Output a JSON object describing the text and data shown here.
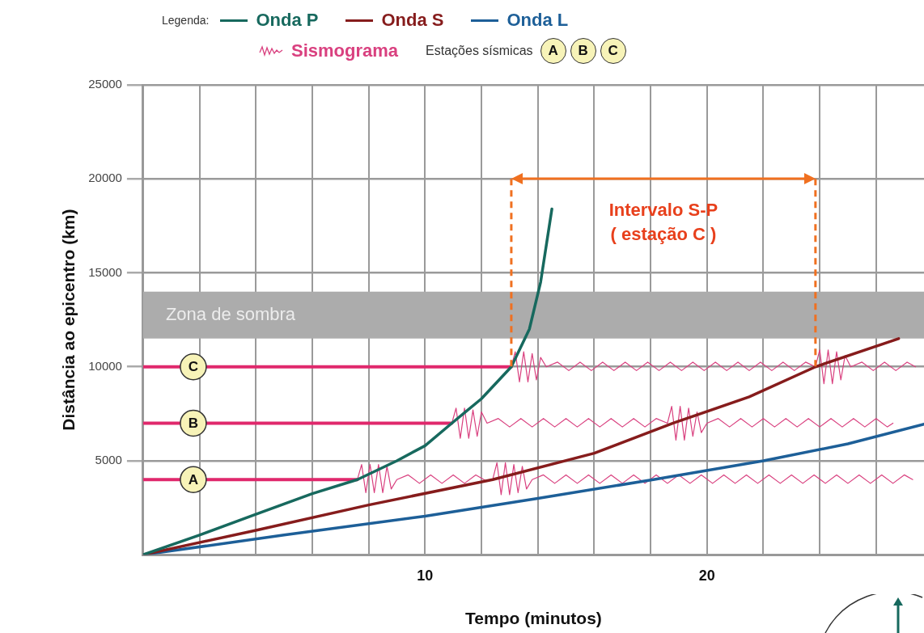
{
  "chart_data": {
    "type": "line",
    "xlabel": "Tempo (minutos)",
    "ylabel": "Distância ao epicentro (km)",
    "legend_title": "Legenda:",
    "legend": "top",
    "grid": true,
    "xlim": [
      0,
      27.7
    ],
    "ylim": [
      0,
      25000
    ],
    "xticks": [
      {
        "value": 2,
        "label": null
      },
      {
        "value": 4,
        "label": null
      },
      {
        "value": 6,
        "label": null
      },
      {
        "value": 8,
        "label": null
      },
      10,
      {
        "value": 12,
        "label": null
      },
      {
        "value": 14,
        "label": null
      },
      {
        "value": 16,
        "label": null
      },
      {
        "value": 18,
        "label": null
      },
      20,
      {
        "value": 22,
        "label": null
      },
      {
        "value": 24,
        "label": null
      },
      {
        "value": 26,
        "label": null
      }
    ],
    "yticks": [
      5000,
      10000,
      15000,
      20000,
      25000
    ],
    "bands": [
      {
        "axis": "y",
        "from": 11500,
        "to": 14000,
        "label": "Zona de sombra",
        "color": "#acacac"
      }
    ],
    "ref_lines": [
      {
        "axis": "x",
        "value": 13.06,
        "color": "#f07020",
        "line_style": "dashed"
      },
      {
        "axis": "x",
        "value": 23.85,
        "color": "#f07020",
        "line_style": "dashed"
      }
    ],
    "annotations": [
      "Intervalo S-P",
      "( estação C )",
      "Estações sísmicas"
    ],
    "series": [
      {
        "name": "Onda P",
        "color": "#17695e",
        "x": [
          0,
          2,
          4,
          6,
          7.6,
          9,
          10,
          10.95,
          12,
          13.06,
          13.7,
          14.1,
          14.5
        ],
        "values": [
          0,
          1050,
          2150,
          3250,
          4000,
          5000,
          5800,
          7000,
          8300,
          10000,
          12000,
          14500,
          18400
        ]
      },
      {
        "name": "Onda S",
        "color": "#861c1c",
        "x": [
          0,
          4,
          8,
          12.4,
          16,
          18.8,
          21.5,
          23.85,
          26.8
        ],
        "values": [
          0,
          1300,
          2650,
          4000,
          5400,
          7000,
          8400,
          10000,
          11500
        ]
      },
      {
        "name": "Onda L",
        "color": "#1d5f98",
        "x": [
          0,
          5,
          10,
          14,
          18.1,
          22,
          25,
          27.7
        ],
        "values": [
          0,
          1050,
          2050,
          3000,
          4000,
          5000,
          5900,
          6950
        ]
      },
      {
        "name": "Sismograma",
        "color": "#d9407f",
        "x": [
          7.6,
          7.75,
          7.9,
          8.05,
          8.2,
          8.35,
          8.5,
          8.65,
          8.8,
          9.0,
          9.4,
          9.8,
          10.2,
          10.6,
          11.0,
          11.4,
          11.8,
          12.2,
          12.4,
          12.55,
          12.7,
          12.85,
          13.0,
          13.15,
          13.3,
          13.45,
          13.6,
          13.8,
          14.2,
          14.6,
          15.0,
          15.4,
          15.8,
          16.2,
          16.6,
          17.0,
          17.4,
          17.8,
          18.2,
          18.6,
          19.0,
          19.4,
          19.8,
          20.2,
          20.6,
          21.0,
          21.4,
          21.8,
          22.2,
          22.6,
          23.0,
          23.4,
          23.8,
          24.2,
          24.6,
          25.0,
          25.4,
          25.8,
          26.2,
          26.6,
          27.0,
          27.3
        ],
        "values": [
          4000,
          4800,
          3300,
          4800,
          3300,
          4800,
          3300,
          4700,
          3500,
          4000,
          4250,
          3800,
          4250,
          3800,
          4250,
          3800,
          4250,
          3900,
          4000,
          4900,
          3200,
          4900,
          3200,
          4800,
          3300,
          4700,
          3500,
          4000,
          4250,
          3800,
          4250,
          3800,
          4250,
          3800,
          4250,
          3800,
          4250,
          3800,
          4250,
          3800,
          4250,
          3800,
          4250,
          3800,
          4250,
          3800,
          4250,
          3800,
          4250,
          3800,
          4250,
          3800,
          4250,
          3800,
          4250,
          3800,
          4250,
          3800,
          4250,
          3800,
          4250,
          4000
        ]
      },
      {
        "color": "#d9407f",
        "x": [
          10.95,
          11.1,
          11.25,
          11.4,
          11.55,
          11.7,
          11.85,
          12.0,
          12.2,
          12.6,
          13.0,
          13.4,
          13.8,
          14.2,
          14.6,
          15.0,
          15.4,
          15.8,
          16.2,
          16.6,
          17.0,
          17.4,
          17.8,
          18.2,
          18.6,
          18.75,
          18.9,
          19.05,
          19.2,
          19.35,
          19.5,
          19.65,
          19.8,
          20.0,
          20.4,
          20.8,
          21.2,
          21.6,
          22.0,
          22.4,
          22.8,
          23.2,
          23.6,
          24.0,
          24.4,
          24.8,
          25.2,
          25.6,
          26.0,
          26.4,
          26.6
        ],
        "values": [
          7000,
          7800,
          6200,
          7800,
          6200,
          7700,
          6300,
          7600,
          7000,
          7250,
          6800,
          7250,
          6800,
          7250,
          6800,
          7250,
          6800,
          7250,
          6800,
          7250,
          6800,
          7250,
          6800,
          7250,
          7000,
          7900,
          6100,
          7900,
          6100,
          7800,
          6300,
          7600,
          6500,
          7000,
          7250,
          6800,
          7250,
          6800,
          7250,
          6800,
          7250,
          6800,
          7250,
          6800,
          7250,
          6800,
          7250,
          6800,
          7250,
          6800,
          7000
        ]
      },
      {
        "color": "#d9407f",
        "x": [
          13.06,
          13.2,
          13.35,
          13.5,
          13.65,
          13.8,
          13.95,
          14.1,
          14.3,
          14.7,
          15.1,
          15.5,
          15.9,
          16.3,
          16.7,
          17.1,
          17.5,
          17.9,
          18.3,
          18.7,
          19.1,
          19.5,
          19.9,
          20.3,
          20.7,
          21.1,
          21.5,
          21.9,
          22.3,
          22.7,
          23.1,
          23.5,
          23.85,
          24.0,
          24.15,
          24.3,
          24.45,
          24.6,
          24.75,
          24.9,
          25.1,
          25.5,
          25.9,
          26.3,
          26.7,
          27.1,
          27.4
        ],
        "values": [
          10000,
          10800,
          9200,
          10800,
          9200,
          10700,
          9300,
          10500,
          10000,
          10250,
          9800,
          10250,
          9800,
          10250,
          9800,
          10250,
          9800,
          10250,
          9800,
          10250,
          9800,
          10250,
          9800,
          10250,
          9800,
          10250,
          9800,
          10250,
          9800,
          10250,
          9800,
          10250,
          10000,
          10900,
          9100,
          10900,
          9100,
          10800,
          9300,
          10600,
          10000,
          10250,
          9800,
          10250,
          9800,
          10250,
          10000
        ]
      },
      {
        "name": "A",
        "color": "#e0286c",
        "x": [
          0,
          7.6
        ],
        "values": [
          4000,
          4000
        ]
      },
      {
        "name": "B",
        "color": "#e0286c",
        "x": [
          0,
          10.95
        ],
        "values": [
          7000,
          7000
        ]
      },
      {
        "name": "C",
        "color": "#e0286c",
        "x": [
          0,
          13.06
        ],
        "values": [
          10000,
          10000
        ]
      }
    ]
  }
}
